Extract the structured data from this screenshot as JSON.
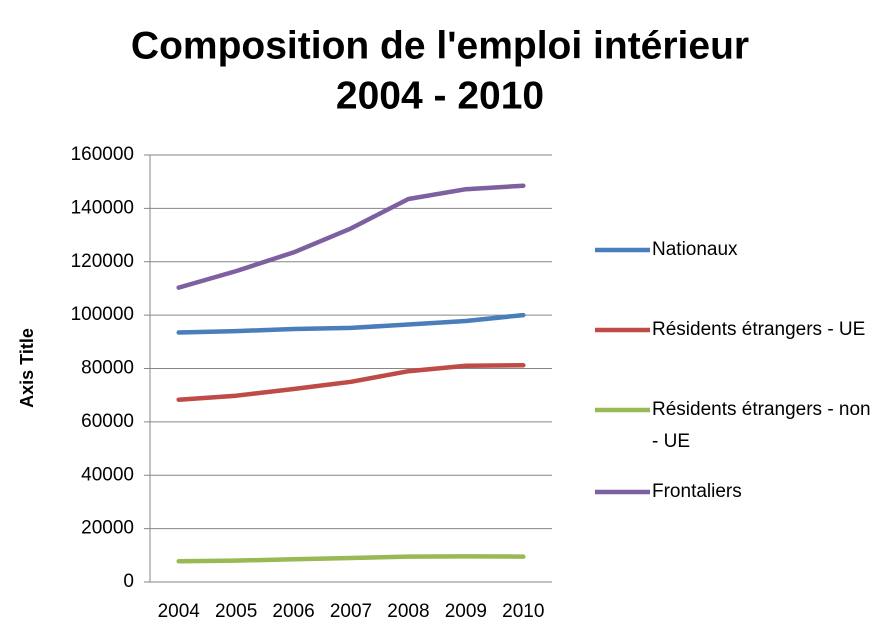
{
  "chart_data": {
    "type": "line",
    "title": [
      "Composition de l'emploi intérieur",
      "2004 - 2010"
    ],
    "y_label": "Axis Title",
    "categories": [
      "2004",
      "2005",
      "2006",
      "2007",
      "2008",
      "2009",
      "2010"
    ],
    "series": [
      {
        "name": "Nationaux",
        "color": "#4a7ebb",
        "values": [
          93500,
          94000,
          94800,
          95200,
          96500,
          97800,
          100000
        ]
      },
      {
        "name": "Résidents étrangers - UE",
        "color": "#be4b48",
        "values": [
          68300,
          69800,
          72300,
          75000,
          79000,
          81000,
          81200
        ]
      },
      {
        "name": "Résidents étrangers - non - UE",
        "color": "#98b954",
        "values": [
          7800,
          8000,
          8500,
          9000,
          9500,
          9600,
          9500
        ]
      },
      {
        "name": "Frontaliers",
        "color": "#7d60a0",
        "values": [
          110300,
          116500,
          123500,
          132500,
          143500,
          147200,
          148500
        ]
      }
    ],
    "ylim": [
      0,
      160000
    ],
    "yticks": [
      0,
      20000,
      40000,
      60000,
      80000,
      100000,
      120000,
      140000,
      160000
    ],
    "grid": true,
    "legend": "right"
  }
}
